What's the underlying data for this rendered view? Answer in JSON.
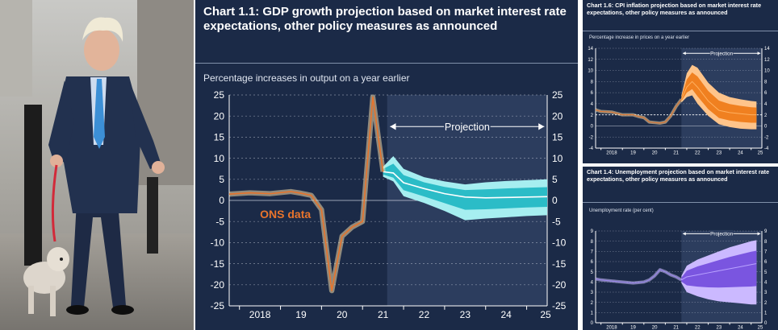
{
  "photo": {
    "alt_icon": "person-walking-dog-photo"
  },
  "colors": {
    "panel_bg": "#1b2a47",
    "projection_bg": "#2c3d5e",
    "ons_orange": "#e8742c",
    "band_teal_dark": "#2bbcc7",
    "band_teal_light": "#a6eef0",
    "band_orange_dark": "#f08020",
    "band_orange_light": "#ffc48a",
    "band_purple_dark": "#7a55e0",
    "band_purple_light": "#cbb9ff",
    "grid": "#d8dde8"
  },
  "main_chart": {
    "title": "Chart 1.1: GDP growth projection based on market interest rate expectations, other policy measures as announced",
    "ylabel": "Percentage increases in output on a year earlier",
    "projection_label": "Projection",
    "ons_label": "ONS data",
    "y_ticks": [
      "25",
      "20",
      "15",
      "10",
      "5",
      "0",
      "-5",
      "-10",
      "-15",
      "-20",
      "-25"
    ],
    "x_labels": [
      "2018",
      "19",
      "20",
      "21",
      "22",
      "23",
      "24",
      "25"
    ]
  },
  "cpi_chart": {
    "title": "Chart 1.6: CPI inflation projection based on market interest rate expectations, other policy measures as announced",
    "ylabel": "Percentage increase in prices on a year earlier",
    "projection_label": "Projection",
    "y_ticks": [
      "14",
      "12",
      "10",
      "8",
      "6",
      "4",
      "2",
      "0",
      "-2",
      "-4"
    ],
    "x_labels": [
      "2018",
      "19",
      "20",
      "21",
      "22",
      "23",
      "24",
      "25"
    ]
  },
  "unemp_chart": {
    "title": "Chart 1.4: Unemployment projection based on market interest rate expectations, other policy measures as announced",
    "ylabel": "Unemployment rate (per cent)",
    "projection_label": "Projection",
    "y_ticks": [
      "9",
      "8",
      "7",
      "6",
      "5",
      "4",
      "3",
      "2",
      "1",
      "0"
    ],
    "x_labels": [
      "2018",
      "19",
      "20",
      "21",
      "22",
      "23",
      "24",
      "25"
    ]
  },
  "chart_data": [
    {
      "type": "area",
      "title": "Chart 1.1: GDP growth projection based on market interest rate expectations, other policy measures as announced",
      "ylabel": "Percentage increases in output on a year earlier",
      "xlabel": "",
      "ylim": [
        -25,
        25
      ],
      "x_categories": [
        "2018",
        "19",
        "20",
        "21",
        "22",
        "23",
        "24",
        "25"
      ],
      "projection_start": 2021.6,
      "history": {
        "name": "ONS data",
        "x": [
          2017.75,
          2018.25,
          2018.75,
          2019.25,
          2019.5,
          2019.75,
          2020.0,
          2020.25,
          2020.5,
          2020.75,
          2021.0,
          2021.25,
          2021.5
        ],
        "y": [
          1.5,
          1.8,
          1.6,
          2.1,
          1.7,
          1.2,
          -2.2,
          -21.4,
          -8.5,
          -6.3,
          -5.0,
          24.5,
          6.8
        ]
      },
      "projection": {
        "x": [
          2021.5,
          2021.75,
          2022.0,
          2022.5,
          2023.0,
          2023.5,
          2024.0,
          2024.5,
          2025.0,
          2025.5
        ],
        "median": [
          6.8,
          6.5,
          4.2,
          2.8,
          1.6,
          0.8,
          0.6,
          0.7,
          0.8,
          0.9
        ],
        "upper": [
          8.0,
          10.5,
          7.5,
          5.5,
          4.5,
          3.8,
          4.3,
          4.6,
          4.8,
          5.0
        ],
        "lower": [
          5.6,
          4.5,
          1.0,
          -0.6,
          -2.5,
          -4.7,
          -4.3,
          -4.0,
          -3.7,
          -3.5
        ]
      }
    },
    {
      "type": "area",
      "title": "Chart 1.6: CPI inflation projection based on market interest rate expectations, other policy measures as announced",
      "ylabel": "Percentage increase in prices on a year earlier",
      "ylim": [
        -4,
        14
      ],
      "x_categories": [
        "2018",
        "19",
        "20",
        "21",
        "22",
        "23",
        "24",
        "25"
      ],
      "projection_start": 2021.75,
      "target": 2,
      "history": {
        "x": [
          2017.75,
          2018.0,
          2018.5,
          2019.0,
          2019.5,
          2019.75,
          2020.0,
          2020.25,
          2020.5,
          2020.75,
          2021.0,
          2021.25,
          2021.5,
          2021.75
        ],
        "y": [
          2.9,
          2.6,
          2.5,
          2.0,
          2.0,
          1.7,
          1.5,
          0.7,
          0.6,
          0.5,
          0.7,
          1.8,
          3.5,
          4.8
        ]
      },
      "projection": {
        "x": [
          2021.75,
          2022.0,
          2022.25,
          2022.5,
          2023.0,
          2023.5,
          2024.0,
          2024.5,
          2025.0,
          2025.25
        ],
        "median": [
          4.8,
          7.0,
          8.0,
          7.0,
          4.5,
          2.8,
          2.4,
          2.2,
          2.0,
          2.0
        ],
        "upper": [
          5.5,
          9.5,
          11.0,
          10.5,
          7.8,
          6.0,
          5.2,
          4.8,
          4.5,
          4.4
        ],
        "lower": [
          4.2,
          5.2,
          5.5,
          4.0,
          1.8,
          0.3,
          -0.2,
          -0.5,
          -0.6,
          -0.6
        ]
      }
    },
    {
      "type": "area",
      "title": "Chart 1.4: Unemployment projection based on market interest rate expectations, other policy measures as announced",
      "ylabel": "Unemployment rate (per cent)",
      "ylim": [
        0,
        9
      ],
      "x_categories": [
        "2018",
        "19",
        "20",
        "21",
        "22",
        "23",
        "24",
        "25"
      ],
      "projection_start": 2021.75,
      "history": {
        "x": [
          2017.75,
          2018.0,
          2018.5,
          2019.0,
          2019.5,
          2020.0,
          2020.25,
          2020.5,
          2020.75,
          2021.0,
          2021.25,
          2021.5,
          2021.75
        ],
        "y": [
          4.3,
          4.2,
          4.1,
          4.0,
          3.9,
          4.0,
          4.2,
          4.6,
          5.2,
          5.0,
          4.7,
          4.5,
          4.2
        ]
      },
      "projection": {
        "x": [
          2021.75,
          2022.0,
          2022.5,
          2023.0,
          2023.5,
          2024.0,
          2024.5,
          2025.0,
          2025.25
        ],
        "median": [
          4.2,
          4.5,
          4.7,
          4.9,
          5.1,
          5.3,
          5.5,
          5.7,
          5.8
        ],
        "upper": [
          4.6,
          5.6,
          6.2,
          6.6,
          7.0,
          7.4,
          7.7,
          8.0,
          8.1
        ],
        "lower": [
          3.9,
          3.0,
          2.6,
          2.3,
          2.1,
          2.0,
          1.9,
          1.8,
          1.8
        ]
      }
    }
  ]
}
